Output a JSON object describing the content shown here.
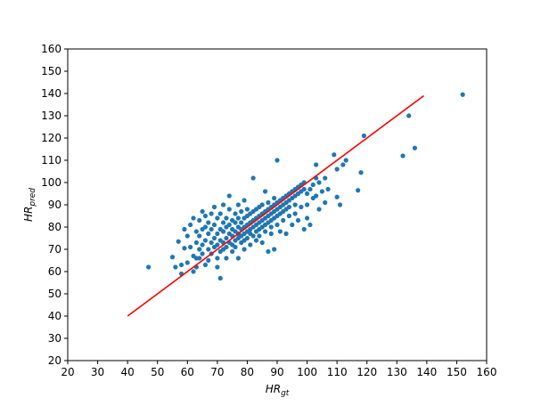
{
  "chart_data": {
    "type": "scatter",
    "title": "",
    "xlabel": {
      "main": "HR",
      "sub": "gt"
    },
    "ylabel": {
      "main": "HR",
      "sub": "pred"
    },
    "xlim": [
      20,
      160
    ],
    "ylim": [
      20,
      160
    ],
    "xticks": [
      20,
      30,
      40,
      50,
      60,
      70,
      80,
      90,
      100,
      110,
      120,
      130,
      140,
      150,
      160
    ],
    "yticks": [
      20,
      30,
      40,
      50,
      60,
      70,
      80,
      90,
      100,
      110,
      120,
      130,
      140,
      150,
      160
    ],
    "grid": false,
    "series": [
      {
        "kind": "scatter",
        "color": "#1f77b4",
        "points": [
          [
            47,
            62
          ],
          [
            55,
            66.5
          ],
          [
            56,
            62
          ],
          [
            57,
            73.5
          ],
          [
            58,
            59
          ],
          [
            58,
            63
          ],
          [
            59,
            70.5
          ],
          [
            59,
            79
          ],
          [
            60,
            64
          ],
          [
            60,
            76
          ],
          [
            61,
            71
          ],
          [
            61,
            81
          ],
          [
            62,
            67
          ],
          [
            62,
            60
          ],
          [
            62,
            84
          ],
          [
            63,
            73
          ],
          [
            63,
            66
          ],
          [
            63,
            78
          ],
          [
            63,
            62
          ],
          [
            64,
            70
          ],
          [
            64,
            83
          ],
          [
            64,
            76
          ],
          [
            64,
            66
          ],
          [
            65,
            79
          ],
          [
            65,
            72
          ],
          [
            65,
            87
          ],
          [
            65,
            68
          ],
          [
            66,
            74
          ],
          [
            66,
            80
          ],
          [
            66,
            63
          ],
          [
            66,
            85
          ],
          [
            67,
            77
          ],
          [
            67,
            70
          ],
          [
            67,
            82
          ],
          [
            67,
            65
          ],
          [
            68,
            73
          ],
          [
            68,
            79
          ],
          [
            68,
            86
          ],
          [
            68,
            68
          ],
          [
            69,
            75
          ],
          [
            69,
            71
          ],
          [
            69,
            81
          ],
          [
            69,
            89
          ],
          [
            70,
            72
          ],
          [
            70,
            77
          ],
          [
            70,
            66
          ],
          [
            70,
            84
          ],
          [
            70,
            62
          ],
          [
            71,
            57
          ],
          [
            71,
            74
          ],
          [
            71,
            79
          ],
          [
            71,
            69
          ],
          [
            71,
            86
          ],
          [
            72,
            73
          ],
          [
            72,
            78
          ],
          [
            72,
            82
          ],
          [
            72,
            70
          ],
          [
            72,
            90
          ],
          [
            73,
            75
          ],
          [
            73,
            80
          ],
          [
            73,
            71
          ],
          [
            73,
            84
          ],
          [
            73,
            66
          ],
          [
            74,
            77
          ],
          [
            74,
            73
          ],
          [
            74,
            81
          ],
          [
            74,
            88
          ],
          [
            74,
            94
          ],
          [
            75,
            76
          ],
          [
            75,
            79
          ],
          [
            75,
            72
          ],
          [
            75,
            83
          ],
          [
            75,
            69
          ],
          [
            76,
            78
          ],
          [
            76,
            74
          ],
          [
            76,
            82
          ],
          [
            76,
            86
          ],
          [
            76,
            71
          ],
          [
            77,
            77
          ],
          [
            77,
            80
          ],
          [
            77,
            75
          ],
          [
            77,
            84
          ],
          [
            77,
            90
          ],
          [
            77,
            66
          ],
          [
            78,
            79
          ],
          [
            78,
            76
          ],
          [
            78,
            82
          ],
          [
            78,
            73
          ],
          [
            78,
            87
          ],
          [
            79,
            80
          ],
          [
            79,
            77
          ],
          [
            79,
            84
          ],
          [
            79,
            74
          ],
          [
            79,
            92
          ],
          [
            79,
            70
          ],
          [
            80,
            81
          ],
          [
            80,
            78
          ],
          [
            80,
            85
          ],
          [
            80,
            75
          ],
          [
            80,
            88
          ],
          [
            81,
            82
          ],
          [
            81,
            79
          ],
          [
            81,
            77
          ],
          [
            81,
            86
          ],
          [
            81,
            72
          ],
          [
            82,
            83
          ],
          [
            82,
            80
          ],
          [
            82,
            87
          ],
          [
            82,
            76
          ],
          [
            82,
            102
          ],
          [
            83,
            84
          ],
          [
            83,
            81
          ],
          [
            83,
            78
          ],
          [
            83,
            88
          ],
          [
            83,
            74
          ],
          [
            84,
            85
          ],
          [
            84,
            82
          ],
          [
            84,
            79
          ],
          [
            84,
            89
          ],
          [
            84,
            76
          ],
          [
            85,
            86
          ],
          [
            85,
            83
          ],
          [
            85,
            80
          ],
          [
            85,
            90
          ],
          [
            85,
            73
          ],
          [
            86,
            87
          ],
          [
            86,
            84
          ],
          [
            86,
            81
          ],
          [
            86,
            78
          ],
          [
            86,
            96
          ],
          [
            87,
            88
          ],
          [
            87,
            85
          ],
          [
            87,
            82
          ],
          [
            87,
            91
          ],
          [
            87,
            69
          ],
          [
            88,
            89
          ],
          [
            88,
            86
          ],
          [
            88,
            83
          ],
          [
            88,
            80
          ],
          [
            88,
            77
          ],
          [
            89,
            90
          ],
          [
            89,
            87
          ],
          [
            89,
            84
          ],
          [
            89,
            93
          ],
          [
            89,
            70
          ],
          [
            90,
            110
          ],
          [
            90,
            91
          ],
          [
            90,
            88
          ],
          [
            90,
            85
          ],
          [
            90,
            81
          ],
          [
            91,
            92
          ],
          [
            91,
            89
          ],
          [
            91,
            86
          ],
          [
            91,
            78
          ],
          [
            92,
            93
          ],
          [
            92,
            90
          ],
          [
            92,
            87
          ],
          [
            92,
            83
          ],
          [
            93,
            94
          ],
          [
            93,
            91
          ],
          [
            93,
            88
          ],
          [
            93,
            77
          ],
          [
            94,
            95
          ],
          [
            94,
            92
          ],
          [
            94,
            89
          ],
          [
            94,
            85
          ],
          [
            95,
            96
          ],
          [
            95,
            93
          ],
          [
            95,
            81
          ],
          [
            96,
            97
          ],
          [
            96,
            94
          ],
          [
            96,
            90
          ],
          [
            96,
            86
          ],
          [
            97,
            98
          ],
          [
            97,
            95
          ],
          [
            97,
            83
          ],
          [
            98,
            99
          ],
          [
            98,
            96
          ],
          [
            98,
            89
          ],
          [
            99,
            100
          ],
          [
            99,
            97
          ],
          [
            99,
            79
          ],
          [
            100,
            95
          ],
          [
            100,
            90
          ],
          [
            100,
            84
          ],
          [
            101,
            97
          ],
          [
            101,
            81
          ],
          [
            102,
            99
          ],
          [
            102,
            93
          ],
          [
            103,
            108
          ],
          [
            103,
            102
          ],
          [
            103,
            94
          ],
          [
            104,
            100
          ],
          [
            104,
            88
          ],
          [
            105,
            96
          ],
          [
            106,
            102
          ],
          [
            106,
            91
          ],
          [
            107,
            97
          ],
          [
            109,
            112.5
          ],
          [
            110,
            93.5
          ],
          [
            110,
            106
          ],
          [
            111,
            90
          ],
          [
            112,
            108
          ],
          [
            113,
            110
          ],
          [
            117,
            96.5
          ],
          [
            118,
            104.5
          ],
          [
            119,
            121
          ],
          [
            132,
            112
          ],
          [
            134,
            130
          ],
          [
            136,
            115.5
          ],
          [
            152,
            139.5
          ]
        ]
      },
      {
        "kind": "line",
        "color": "#ff0000",
        "points": [
          [
            40,
            40
          ],
          [
            139,
            139
          ]
        ]
      }
    ]
  }
}
